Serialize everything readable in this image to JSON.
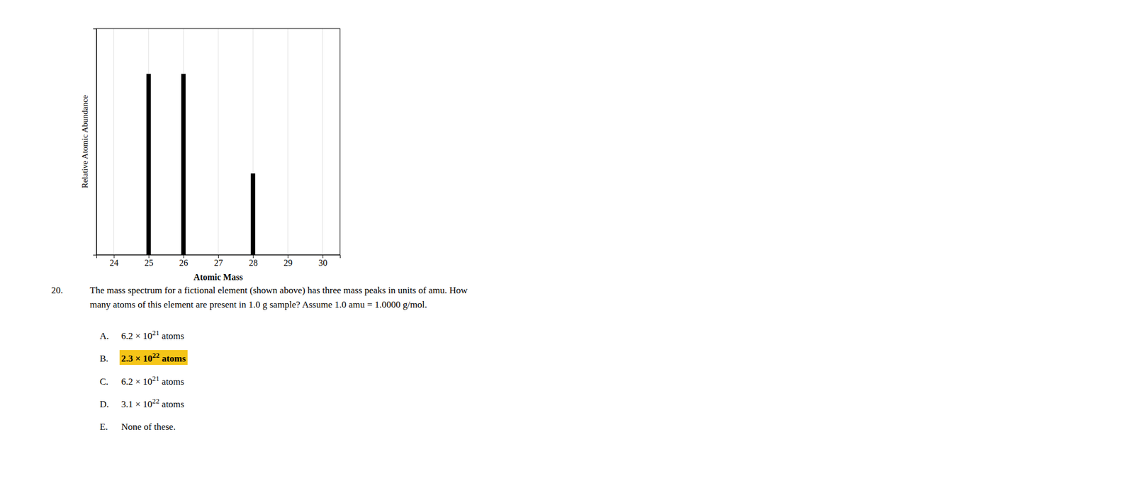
{
  "chart_data": {
    "type": "bar",
    "x": [
      25,
      26,
      28
    ],
    "values": [
      1.0,
      1.0,
      0.45
    ],
    "color": "#000000",
    "xlim": [
      23.5,
      30.5
    ],
    "ylim": [
      0,
      1.25
    ],
    "xticks": [
      24,
      25,
      26,
      27,
      28,
      29,
      30
    ],
    "tick_labels": "x",
    "grid": true,
    "xlabel": "Atomic Mass",
    "ylabel": "Relative Atomic Abundance",
    "annotations": [
      {
        "text": "20."
      },
      {
        "text": "The mass spectrum for a fictional element (shown above) has three mass peaks in units of amu.  How"
      },
      {
        "text": "many atoms of this element are present in 1.0 g sample?  Assume 1.0 amu = 1.0000 g/mol."
      },
      {
        "label": "A.",
        "text": "6.2 × 10",
        "superscript": "21",
        "after": " atoms"
      },
      {
        "label": "B.",
        "text": "2.3 × 10",
        "superscript": "22",
        "after": " atoms",
        "color": "#f5c518"
      },
      {
        "label": "C.",
        "text": "6.2 × 10",
        "superscript": "21",
        "after": " atoms"
      },
      {
        "label": "D.",
        "text": "3.1 × 10",
        "superscript": "22",
        "after": " atoms"
      },
      {
        "label": "E.",
        "text": "None of these."
      }
    ]
  }
}
